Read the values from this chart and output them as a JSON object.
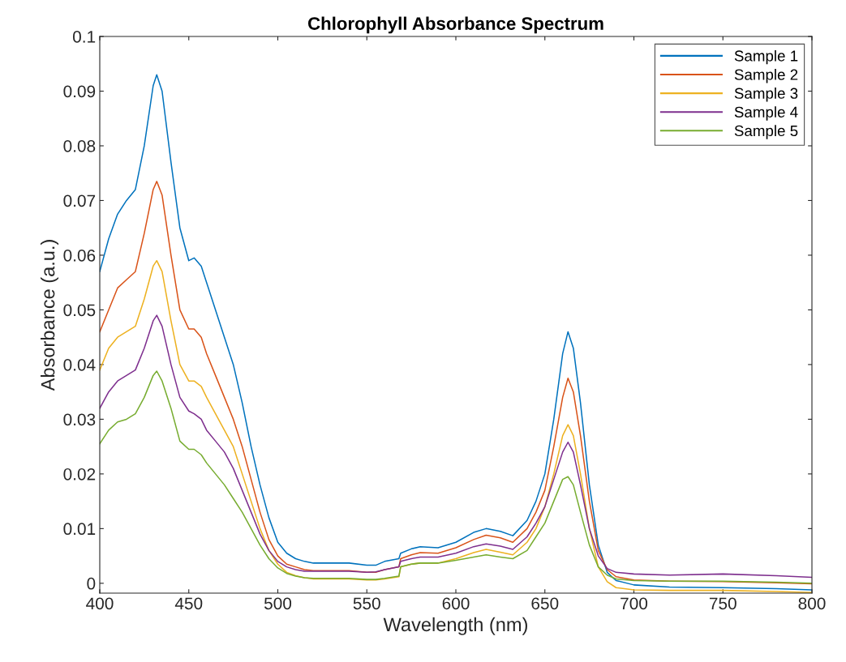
{
  "chart_data": {
    "type": "line",
    "title": "Chlorophyll Absorbance Spectrum",
    "xlabel": "Wavelength (nm)",
    "ylabel": "Absorbance (a.u.)",
    "x": [
      400,
      405,
      410,
      415,
      420,
      425,
      430,
      432,
      435,
      440,
      445,
      450,
      453,
      457,
      460,
      465,
      470,
      475,
      480,
      485,
      490,
      495,
      500,
      505,
      510,
      515,
      520,
      530,
      540,
      550,
      555,
      560,
      568,
      569,
      575,
      580,
      590,
      600,
      610,
      617,
      625,
      632,
      640,
      645,
      650,
      655,
      660,
      663,
      666,
      670,
      675,
      680,
      685,
      690,
      700,
      720,
      750,
      780,
      800
    ],
    "xlim": [
      400,
      800
    ],
    "xticks": [
      400,
      450,
      500,
      550,
      600,
      650,
      700,
      750,
      800
    ],
    "ylim": [
      -0.0018,
      0.1
    ],
    "yticks": [
      0,
      0.01,
      0.02,
      0.03,
      0.04,
      0.05,
      0.06,
      0.07,
      0.08,
      0.09,
      0.1
    ],
    "grid": false,
    "legend": "top right",
    "marker": "none",
    "line_style": "solid",
    "series": [
      {
        "name": "Sample 1",
        "color": "#0072bd",
        "values": [
          0.057,
          0.063,
          0.0675,
          0.07,
          0.072,
          0.08,
          0.091,
          0.093,
          0.09,
          0.077,
          0.065,
          0.059,
          0.0595,
          0.058,
          0.055,
          0.05,
          0.045,
          0.04,
          0.033,
          0.025,
          0.018,
          0.012,
          0.0075,
          0.0055,
          0.0045,
          0.004,
          0.0037,
          0.0037,
          0.0037,
          0.0033,
          0.0033,
          0.004,
          0.0045,
          0.0055,
          0.0063,
          0.0067,
          0.0065,
          0.0075,
          0.0093,
          0.01,
          0.0095,
          0.0087,
          0.0115,
          0.015,
          0.02,
          0.03,
          0.042,
          0.046,
          0.043,
          0.033,
          0.018,
          0.007,
          0.002,
          0.0005,
          -0.0003,
          -0.0007,
          -0.0008,
          -0.001,
          -0.0012
        ]
      },
      {
        "name": "Sample 2",
        "color": "#d95319",
        "values": [
          0.046,
          0.05,
          0.054,
          0.0555,
          0.057,
          0.064,
          0.072,
          0.0735,
          0.071,
          0.06,
          0.05,
          0.0465,
          0.0465,
          0.045,
          0.042,
          0.038,
          0.034,
          0.03,
          0.025,
          0.019,
          0.013,
          0.008,
          0.005,
          0.0035,
          0.003,
          0.0025,
          0.0023,
          0.0023,
          0.0023,
          0.002,
          0.002,
          0.0025,
          0.003,
          0.0045,
          0.0052,
          0.0056,
          0.0055,
          0.0065,
          0.008,
          0.0088,
          0.0083,
          0.0075,
          0.01,
          0.013,
          0.017,
          0.025,
          0.034,
          0.0375,
          0.035,
          0.027,
          0.015,
          0.006,
          0.0025,
          0.0012,
          0.0006,
          0.0004,
          0.0003,
          0.0001,
          -0.0001
        ]
      },
      {
        "name": "Sample 3",
        "color": "#edb120",
        "values": [
          0.039,
          0.043,
          0.045,
          0.046,
          0.047,
          0.052,
          0.058,
          0.059,
          0.057,
          0.048,
          0.04,
          0.037,
          0.037,
          0.036,
          0.034,
          0.031,
          0.028,
          0.025,
          0.02,
          0.015,
          0.01,
          0.006,
          0.0035,
          0.002,
          0.0014,
          0.001,
          0.0008,
          0.0008,
          0.0008,
          0.0006,
          0.0006,
          0.0008,
          0.0012,
          0.003,
          0.0035,
          0.0037,
          0.0037,
          0.0045,
          0.0056,
          0.0062,
          0.0057,
          0.0052,
          0.0075,
          0.01,
          0.014,
          0.02,
          0.027,
          0.029,
          0.027,
          0.02,
          0.01,
          0.003,
          0.0003,
          -0.0008,
          -0.0012,
          -0.0013,
          -0.0013,
          -0.0015,
          -0.0017
        ]
      },
      {
        "name": "Sample 4",
        "color": "#7e2f8e",
        "values": [
          0.032,
          0.035,
          0.037,
          0.038,
          0.039,
          0.043,
          0.048,
          0.049,
          0.047,
          0.04,
          0.034,
          0.0315,
          0.031,
          0.03,
          0.028,
          0.026,
          0.024,
          0.021,
          0.017,
          0.013,
          0.009,
          0.006,
          0.004,
          0.003,
          0.0025,
          0.0022,
          0.0022,
          0.0022,
          0.0022,
          0.002,
          0.0021,
          0.0025,
          0.003,
          0.004,
          0.0045,
          0.0048,
          0.0048,
          0.0055,
          0.0067,
          0.0072,
          0.0068,
          0.0062,
          0.0085,
          0.011,
          0.014,
          0.019,
          0.024,
          0.0258,
          0.024,
          0.018,
          0.01,
          0.005,
          0.0027,
          0.002,
          0.0017,
          0.0015,
          0.0017,
          0.0014,
          0.0011
        ]
      },
      {
        "name": "Sample 5",
        "color": "#77ac30",
        "values": [
          0.0255,
          0.028,
          0.0295,
          0.03,
          0.031,
          0.034,
          0.038,
          0.0388,
          0.037,
          0.032,
          0.026,
          0.0245,
          0.0245,
          0.0235,
          0.022,
          0.02,
          0.018,
          0.0155,
          0.013,
          0.01,
          0.007,
          0.0045,
          0.0028,
          0.0018,
          0.0013,
          0.001,
          0.0009,
          0.0009,
          0.0009,
          0.0007,
          0.0007,
          0.0009,
          0.0013,
          0.003,
          0.0035,
          0.0037,
          0.0037,
          0.0042,
          0.0048,
          0.0052,
          0.0048,
          0.0045,
          0.006,
          0.0085,
          0.011,
          0.015,
          0.019,
          0.0195,
          0.018,
          0.013,
          0.007,
          0.003,
          0.0015,
          0.0008,
          0.0005,
          0.0004,
          0.0004,
          0.0002,
          0.0
        ]
      }
    ]
  }
}
